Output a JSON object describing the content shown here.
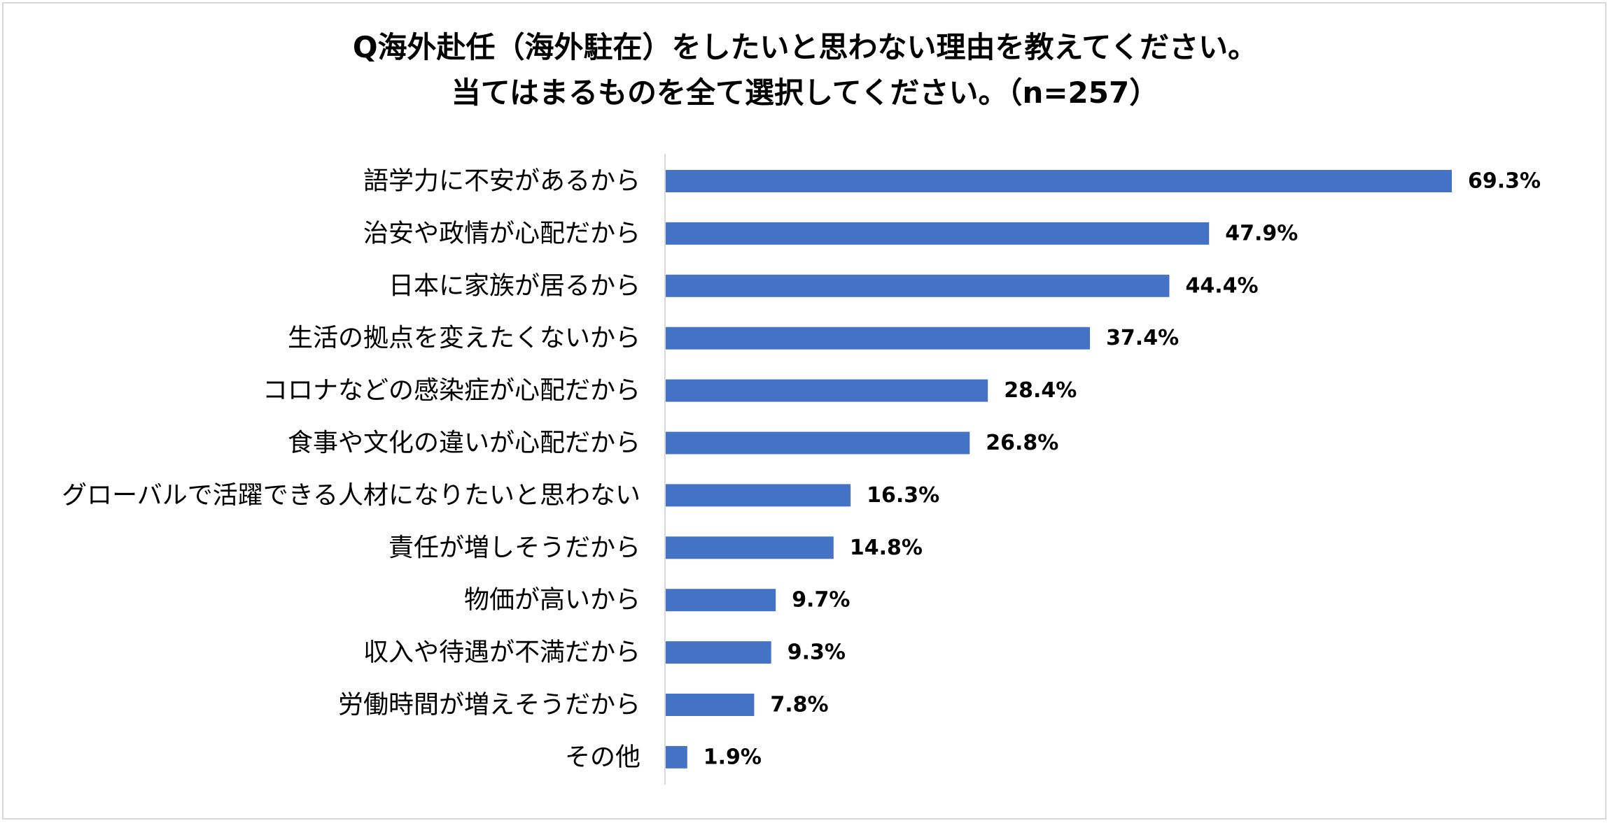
{
  "chart_data": {
    "type": "bar",
    "orientation": "horizontal",
    "title": [
      "Q海外赴任（海外駐在）をしたいと思わない理由を教えてください。",
      "当てはまるものを全て選択してください。（n=257）"
    ],
    "categories": [
      "語学力に不安があるから",
      "治安や政情が心配だから",
      "日本に家族が居るから",
      "生活の拠点を変えたくないから",
      "コロナなどの感染症が心配だから",
      "食事や文化の違いが心配だから",
      "グローバルで活躍できる人材になりたいと思わない",
      "責任が増しそうだから",
      "物価が高いから",
      "収入や待遇が不満だから",
      "労働時間が増えそうだから",
      "その他"
    ],
    "values": [
      69.3,
      47.9,
      44.4,
      37.4,
      28.4,
      26.8,
      16.3,
      14.8,
      9.7,
      9.3,
      7.8,
      1.9
    ],
    "value_labels": [
      "69.3%",
      "47.9%",
      "44.4%",
      "37.4%",
      "28.4%",
      "26.8%",
      "16.3%",
      "14.8%",
      "9.7%",
      "9.3%",
      "7.8%",
      "1.9%"
    ],
    "xlim": [
      0,
      70
    ],
    "bar_color": "#4472c4",
    "axis_color": "#d9d9d9",
    "grid": false,
    "legend": "none"
  }
}
